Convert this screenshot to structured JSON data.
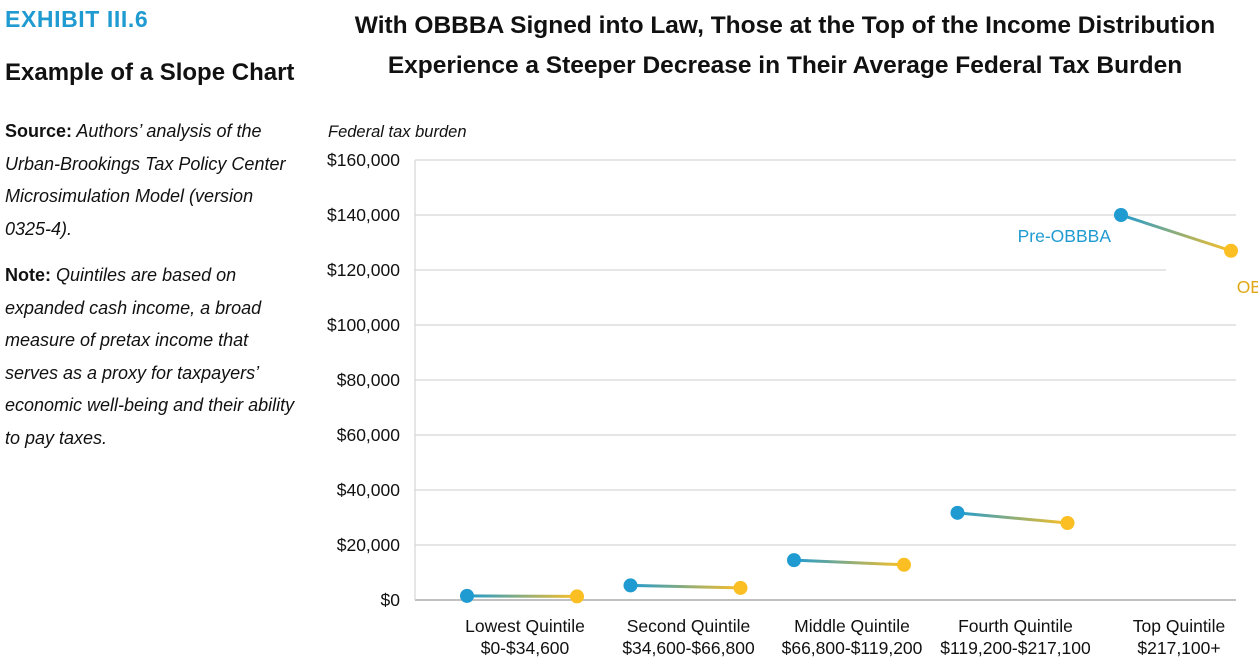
{
  "sidebar": {
    "exhibit_label": "EXHIBIT III.6",
    "subtitle": "Example of a Slope Chart",
    "source_label": "Source:",
    "source_text": "Authors’ analysis of the Urban-Brookings Tax Policy Center Microsimulation Model (version 0325-4).",
    "note_label": "Note:",
    "note_text": "Quintiles are based on expanded cash income, a broad measure of pretax income that serves as a proxy for taxpayers’ economic well-being and their ability to pay taxes."
  },
  "chart_data": {
    "type": "slope",
    "title": "With OBBBA Signed into Law, Those at the Top of the Income Distribution Experience a Steeper Decrease in Their Average Federal Tax Burden",
    "ylabel": "Federal tax burden",
    "ylim": [
      0,
      160000
    ],
    "yticks": [
      0,
      20000,
      40000,
      60000,
      80000,
      100000,
      120000,
      140000,
      160000
    ],
    "ytick_labels": [
      "$0",
      "$20,000",
      "$40,000",
      "$60,000",
      "$80,000",
      "$100,000",
      "$120,000",
      "$140,000",
      "$160,000"
    ],
    "grid": true,
    "categories": [
      {
        "name": "Lowest Quintile",
        "range": "$0-$34,600"
      },
      {
        "name": "Second Quintile",
        "range": "$34,600-$66,800"
      },
      {
        "name": "Middle Quintile",
        "range": "$66,800-$119,200"
      },
      {
        "name": "Fourth Quintile",
        "range": "$119,200-$217,100"
      },
      {
        "name": "Top Quintile",
        "range": "$217,100+"
      }
    ],
    "series": [
      {
        "name": "Pre-OBBBA",
        "color": "#1f9bd1",
        "values": [
          1500,
          5300,
          14500,
          31700,
          140000
        ]
      },
      {
        "name": "OBBBA",
        "color": "#fbbf24",
        "values": [
          1300,
          4400,
          12800,
          28000,
          127000
        ]
      }
    ],
    "series_labels_shown_on": "Top Quintile"
  }
}
